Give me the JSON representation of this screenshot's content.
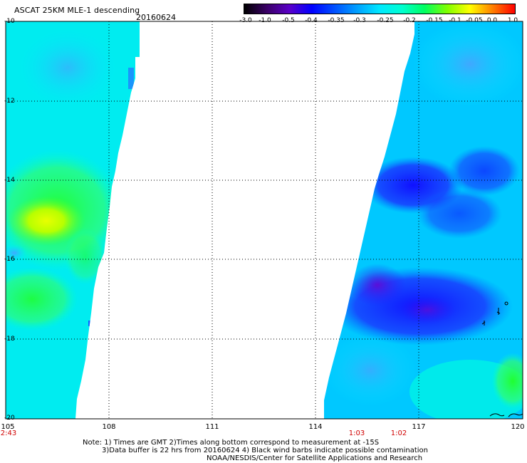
{
  "header": {
    "title": "ASCAT 25KM MLE-1 descending",
    "date": "20160624"
  },
  "colorbar": {
    "labels": [
      "-3.0",
      "-1.0",
      "-0.5",
      "-0.4",
      "-0.35",
      "-0.3",
      "-0.25",
      "-0.2",
      "-0.15",
      "-0.1",
      "-0.05",
      "0.0",
      "1.0"
    ],
    "colors": [
      "#000000",
      "#3a0066",
      "#5a00c8",
      "#0000ff",
      "#0050ff",
      "#00a0ff",
      "#00e8ff",
      "#00ffd0",
      "#00ff60",
      "#80ff00",
      "#ffff00",
      "#ff8000",
      "#ff0000"
    ]
  },
  "axes": {
    "lat_labels": [
      "-10",
      "-12",
      "-14",
      "-16",
      "-18",
      "-20"
    ],
    "lon_labels": [
      "105",
      "108",
      "111",
      "114",
      "117",
      "120"
    ]
  },
  "times": [
    "2:43",
    "1:03",
    "1:02"
  ],
  "notes": [
    "Note: 1) Times are GMT 2)Times along bottom correspond to measurement at -15S",
    "3)Data buffer is 22 hrs from 20160624 4) Black wind barbs indicate possible contamination",
    "NOAA/NESDIS/Center for Satellite Applications and Research"
  ]
}
